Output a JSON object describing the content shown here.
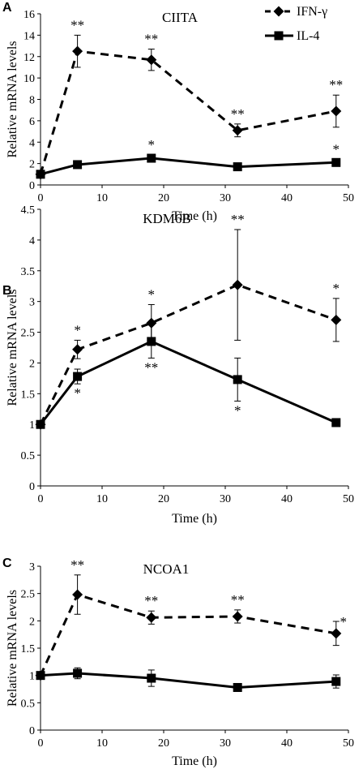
{
  "legend": [
    {
      "label": "IFN-γ",
      "marker": "diamond",
      "dash": true
    },
    {
      "label": "IL-4",
      "marker": "square",
      "dash": false
    }
  ],
  "chart_data": [
    {
      "type": "line",
      "panel": "A",
      "title": "CIITA",
      "xlabel": "Time (h)",
      "ylabel": "Relative mRNA levels",
      "xlim": [
        0,
        50
      ],
      "ylim": [
        0,
        16
      ],
      "xticks": [
        "0",
        "10",
        "20",
        "30",
        "40",
        "50"
      ],
      "yticks": [
        "0",
        "2",
        "4",
        "6",
        "8",
        "10",
        "12",
        "14",
        "16"
      ],
      "x": [
        0,
        6,
        18,
        32,
        48
      ],
      "series": [
        {
          "name": "IFN-γ",
          "values": [
            1,
            12.5,
            11.7,
            5.1,
            6.9
          ],
          "err": [
            0,
            1.5,
            1.0,
            0.6,
            1.5
          ],
          "annot": [
            "",
            "**",
            "**",
            "**",
            "**"
          ]
        },
        {
          "name": "IL-4",
          "values": [
            1,
            1.9,
            2.5,
            1.7,
            2.1
          ],
          "err": [
            0,
            0.2,
            0.3,
            0.2,
            0.3
          ],
          "annot": [
            "",
            "",
            "*",
            "",
            "*"
          ]
        }
      ]
    },
    {
      "type": "line",
      "panel": "B",
      "title": "KDM6B",
      "xlabel": "Time (h)",
      "ylabel": "Relative mRNA levels",
      "xlim": [
        0,
        50
      ],
      "ylim": [
        0,
        4.5
      ],
      "xticks": [
        "0",
        "10",
        "20",
        "30",
        "40",
        "50"
      ],
      "yticks": [
        "0",
        "0.5",
        "1",
        "1.5",
        "2",
        "2.5",
        "3",
        "3.5",
        "4",
        "4.5"
      ],
      "x": [
        0,
        6,
        18,
        32,
        48
      ],
      "series": [
        {
          "name": "IFN-γ",
          "values": [
            1,
            2.22,
            2.65,
            3.27,
            2.7
          ],
          "err": [
            0,
            0.15,
            0.3,
            0.9,
            0.35
          ],
          "annot": [
            "",
            "*",
            "*",
            "**",
            "*"
          ]
        },
        {
          "name": "IL-4",
          "values": [
            1,
            1.78,
            2.35,
            1.73,
            1.03
          ],
          "err": [
            0,
            0.12,
            0.27,
            0.35,
            0.05
          ],
          "annot": [
            "",
            "*",
            "**",
            "*",
            ""
          ]
        }
      ]
    },
    {
      "type": "line",
      "panel": "C",
      "title": "NCOA1",
      "xlabel": "Time (h)",
      "ylabel": "Relative mRNA levels",
      "xlim": [
        0,
        50
      ],
      "ylim": [
        0,
        3
      ],
      "xticks": [
        "0",
        "10",
        "20",
        "30",
        "40",
        "50"
      ],
      "yticks": [
        "0",
        "0.5",
        "1",
        "1.5",
        "2",
        "2.5",
        "3"
      ],
      "x": [
        0,
        6,
        18,
        32,
        48
      ],
      "series": [
        {
          "name": "IFN-γ",
          "values": [
            1,
            2.48,
            2.06,
            2.08,
            1.77
          ],
          "err": [
            0,
            0.36,
            0.12,
            0.12,
            0.22
          ],
          "annot": [
            "",
            "**",
            "**",
            "**",
            "*"
          ]
        },
        {
          "name": "IL-4",
          "values": [
            1,
            1.04,
            0.95,
            0.78,
            0.89
          ],
          "err": [
            0,
            0.1,
            0.15,
            0.04,
            0.12
          ],
          "annot": [
            "",
            "",
            "",
            "",
            ""
          ]
        }
      ]
    }
  ]
}
